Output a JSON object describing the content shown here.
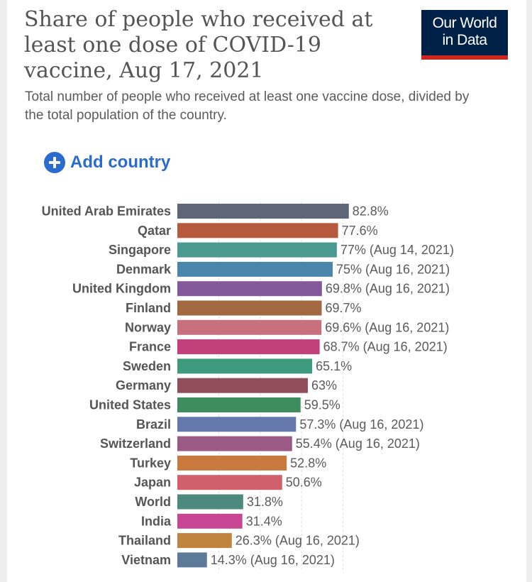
{
  "title": "Share of people who received at least one dose of COVID-19 vaccine, Aug 17, 2021",
  "title_lines": [
    "Share of people who received at",
    "least one dose of COVID-19",
    "vaccine, Aug 17, 2021"
  ],
  "subtitle": "Total number of people who received at least one vaccine dose, divided by the total population of the country.",
  "logo": {
    "line1": "Our World",
    "line2": "in Data",
    "bg": "#002147",
    "bar": "#ce261e"
  },
  "add_country": {
    "label": "Add country",
    "icon": "plus-circle-icon",
    "color": "#2a6bcf"
  },
  "chart_data": {
    "type": "bar",
    "orientation": "horizontal",
    "unit": "%",
    "xlim": [
      0,
      100
    ],
    "grid": true,
    "categories": [
      "United Arab Emirates",
      "Qatar",
      "Singapore",
      "Denmark",
      "United Kingdom",
      "Finland",
      "Norway",
      "France",
      "Sweden",
      "Germany",
      "United States",
      "Brazil",
      "Switzerland",
      "Turkey",
      "Japan",
      "World",
      "India",
      "Thailand",
      "Vietnam"
    ],
    "values": [
      82.8,
      77.6,
      77,
      75,
      69.8,
      69.7,
      69.6,
      68.7,
      65.1,
      63,
      59.5,
      57.3,
      55.4,
      52.8,
      50.6,
      31.8,
      31.4,
      26.3,
      14.3
    ],
    "value_labels": [
      "82.8%",
      "77.6%",
      "77% (Aug 14, 2021)",
      "75% (Aug 16, 2021)",
      "69.8% (Aug 16, 2021)",
      "69.7%",
      "69.6% (Aug 16, 2021)",
      "68.7% (Aug 16, 2021)",
      "65.1%",
      "63%",
      "59.5%",
      "57.3% (Aug 16, 2021)",
      "55.4% (Aug 16, 2021)",
      "52.8%",
      "50.6%",
      "31.8%",
      "31.4%",
      "26.3% (Aug 16, 2021)",
      "14.3% (Aug 16, 2021)"
    ],
    "colors": [
      "#5e6678",
      "#b55a3c",
      "#4b9a8f",
      "#4a85aa",
      "#83599b",
      "#a2683f",
      "#c7707e",
      "#c2417a",
      "#3d9a7c",
      "#8f4e5a",
      "#3f8c5e",
      "#6578ae",
      "#9a5a84",
      "#c87a3e",
      "#d1606c",
      "#4d8a7d",
      "#c64694",
      "#c0843e",
      "#5e7a99"
    ]
  }
}
